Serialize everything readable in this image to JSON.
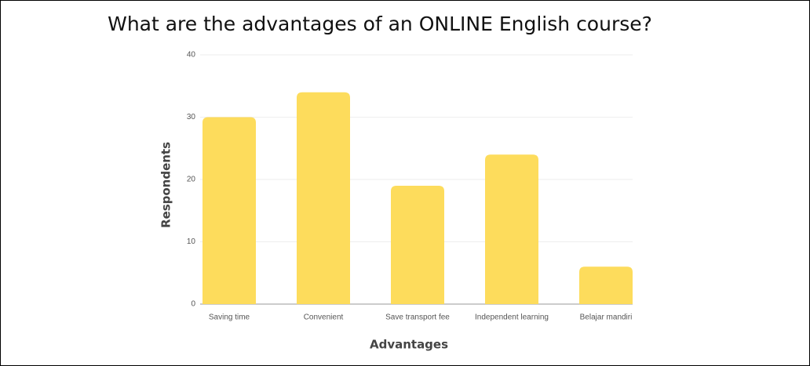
{
  "chart_data": {
    "type": "bar",
    "title": "What are the advantages of an ONLINE English course?",
    "x_label": "Advantages",
    "y_label": "Respondents",
    "categories": [
      "Saving time",
      "Convenient",
      "Save transport fee",
      "Independent learning",
      "Belajar mandiri"
    ],
    "values": [
      30,
      34,
      19,
      24,
      6
    ],
    "color": "#fddc5c",
    "ylim": [
      0,
      40
    ],
    "yticks": [
      0,
      10,
      20,
      30,
      40
    ],
    "grid": true
  }
}
